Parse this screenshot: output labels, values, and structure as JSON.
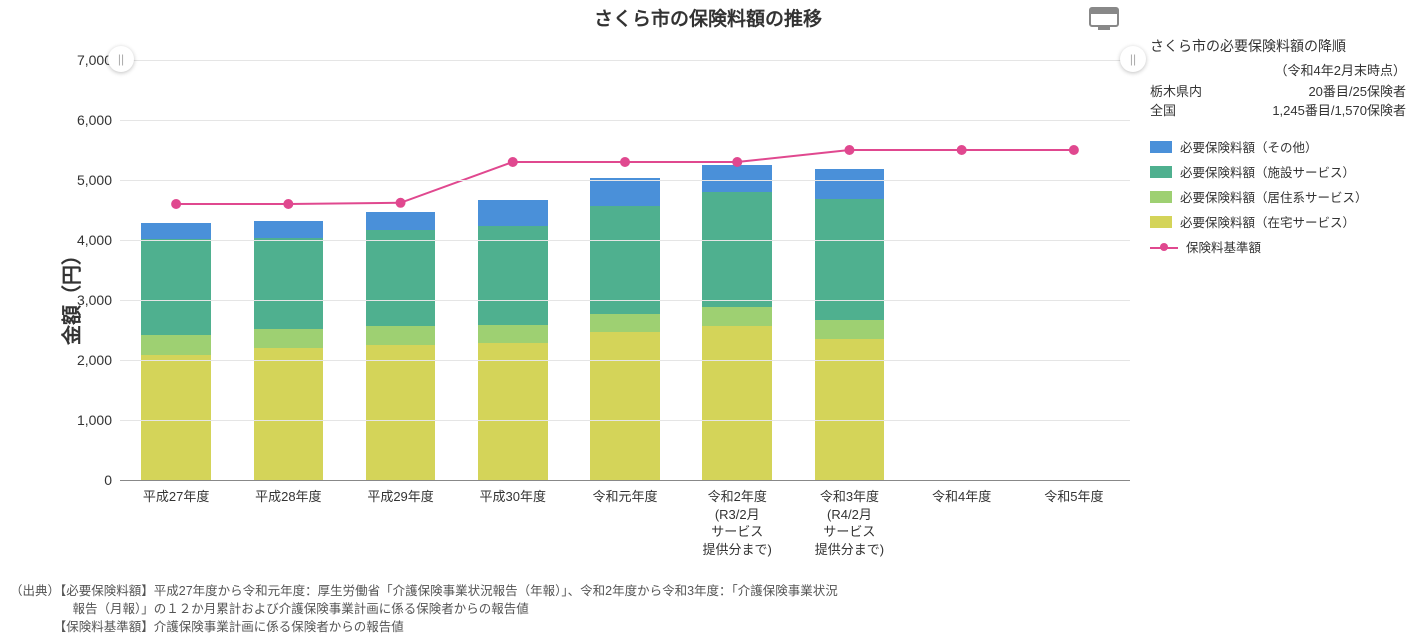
{
  "title": "さくら市の保険料額の推移",
  "chart": {
    "type": "stacked-bar-with-line",
    "y_axis_title": "金額（円）",
    "ylim": [
      0,
      7000
    ],
    "ytick_step": 1000,
    "yticks": [
      0,
      1000,
      2000,
      3000,
      4000,
      5000,
      6000,
      7000
    ],
    "ytick_labels": [
      "0",
      "1,000",
      "2,000",
      "3,000",
      "4,000",
      "5,000",
      "6,000",
      "7,000"
    ],
    "grid_color": "#e5e5e5",
    "axis_color": "#888888",
    "background_color": "#ffffff",
    "bar_width_ratio": 0.62,
    "categories": [
      "平成27年度",
      "平成28年度",
      "平成29年度",
      "平成30年度",
      "令和元年度",
      "令和2年度\n(R3/2月\nサービス\n提供分まで)",
      "令和3年度\n(R4/2月\nサービス\n提供分まで)",
      "令和4年度",
      "令和5年度"
    ],
    "series": {
      "home": {
        "label": "必要保険料額（在宅サービス）",
        "color": "#d4d459"
      },
      "resid": {
        "label": "必要保険料額（居住系サービス）",
        "color": "#9ed072"
      },
      "fac": {
        "label": "必要保険料額（施設サービス）",
        "color": "#4fb08f"
      },
      "other": {
        "label": "必要保険料額（その他）",
        "color": "#4a90d9"
      }
    },
    "stacks": [
      {
        "home": 2080,
        "resid": 330,
        "fac": 1600,
        "other": 280
      },
      {
        "home": 2200,
        "resid": 310,
        "fac": 1520,
        "other": 280
      },
      {
        "home": 2250,
        "resid": 320,
        "fac": 1590,
        "other": 300
      },
      {
        "home": 2280,
        "resid": 300,
        "fac": 1650,
        "other": 440
      },
      {
        "home": 2470,
        "resid": 290,
        "fac": 1800,
        "other": 470
      },
      {
        "home": 2560,
        "resid": 320,
        "fac": 1920,
        "other": 450
      },
      {
        "home": 2350,
        "resid": 320,
        "fac": 2010,
        "other": 500
      },
      null,
      null
    ],
    "line": {
      "label": "保険料基準額",
      "color": "#e0488f",
      "width": 2,
      "marker_radius": 5,
      "values": [
        4600,
        4600,
        4620,
        5300,
        5300,
        5300,
        5500,
        5500,
        5500
      ]
    },
    "scroll_handle_glyph": "||"
  },
  "side": {
    "title": "さくら市の必要保険料額の降順",
    "subtitle": "（令和4年2月末時点）",
    "rows": [
      {
        "region": "栃木県内",
        "rank": "20番目/25保険者"
      },
      {
        "region": "全国",
        "rank": "1,245番目/1,570保険者"
      }
    ],
    "legend_order": [
      "other",
      "fac",
      "resid",
      "home"
    ]
  },
  "footnote": "（出典）【必要保険料額】平成27年度から令和元年度：厚生労働省「介護保険事業状況報告（年報）」、令和2年度から令和3年度：「介護保険事業状況\n　　　　　報告（月報）」の１２か月累計および介護保険事業計画に係る保険者からの報告値\n　　　　【保険料基準額】介護保険事業計画に係る保険者からの報告値"
}
